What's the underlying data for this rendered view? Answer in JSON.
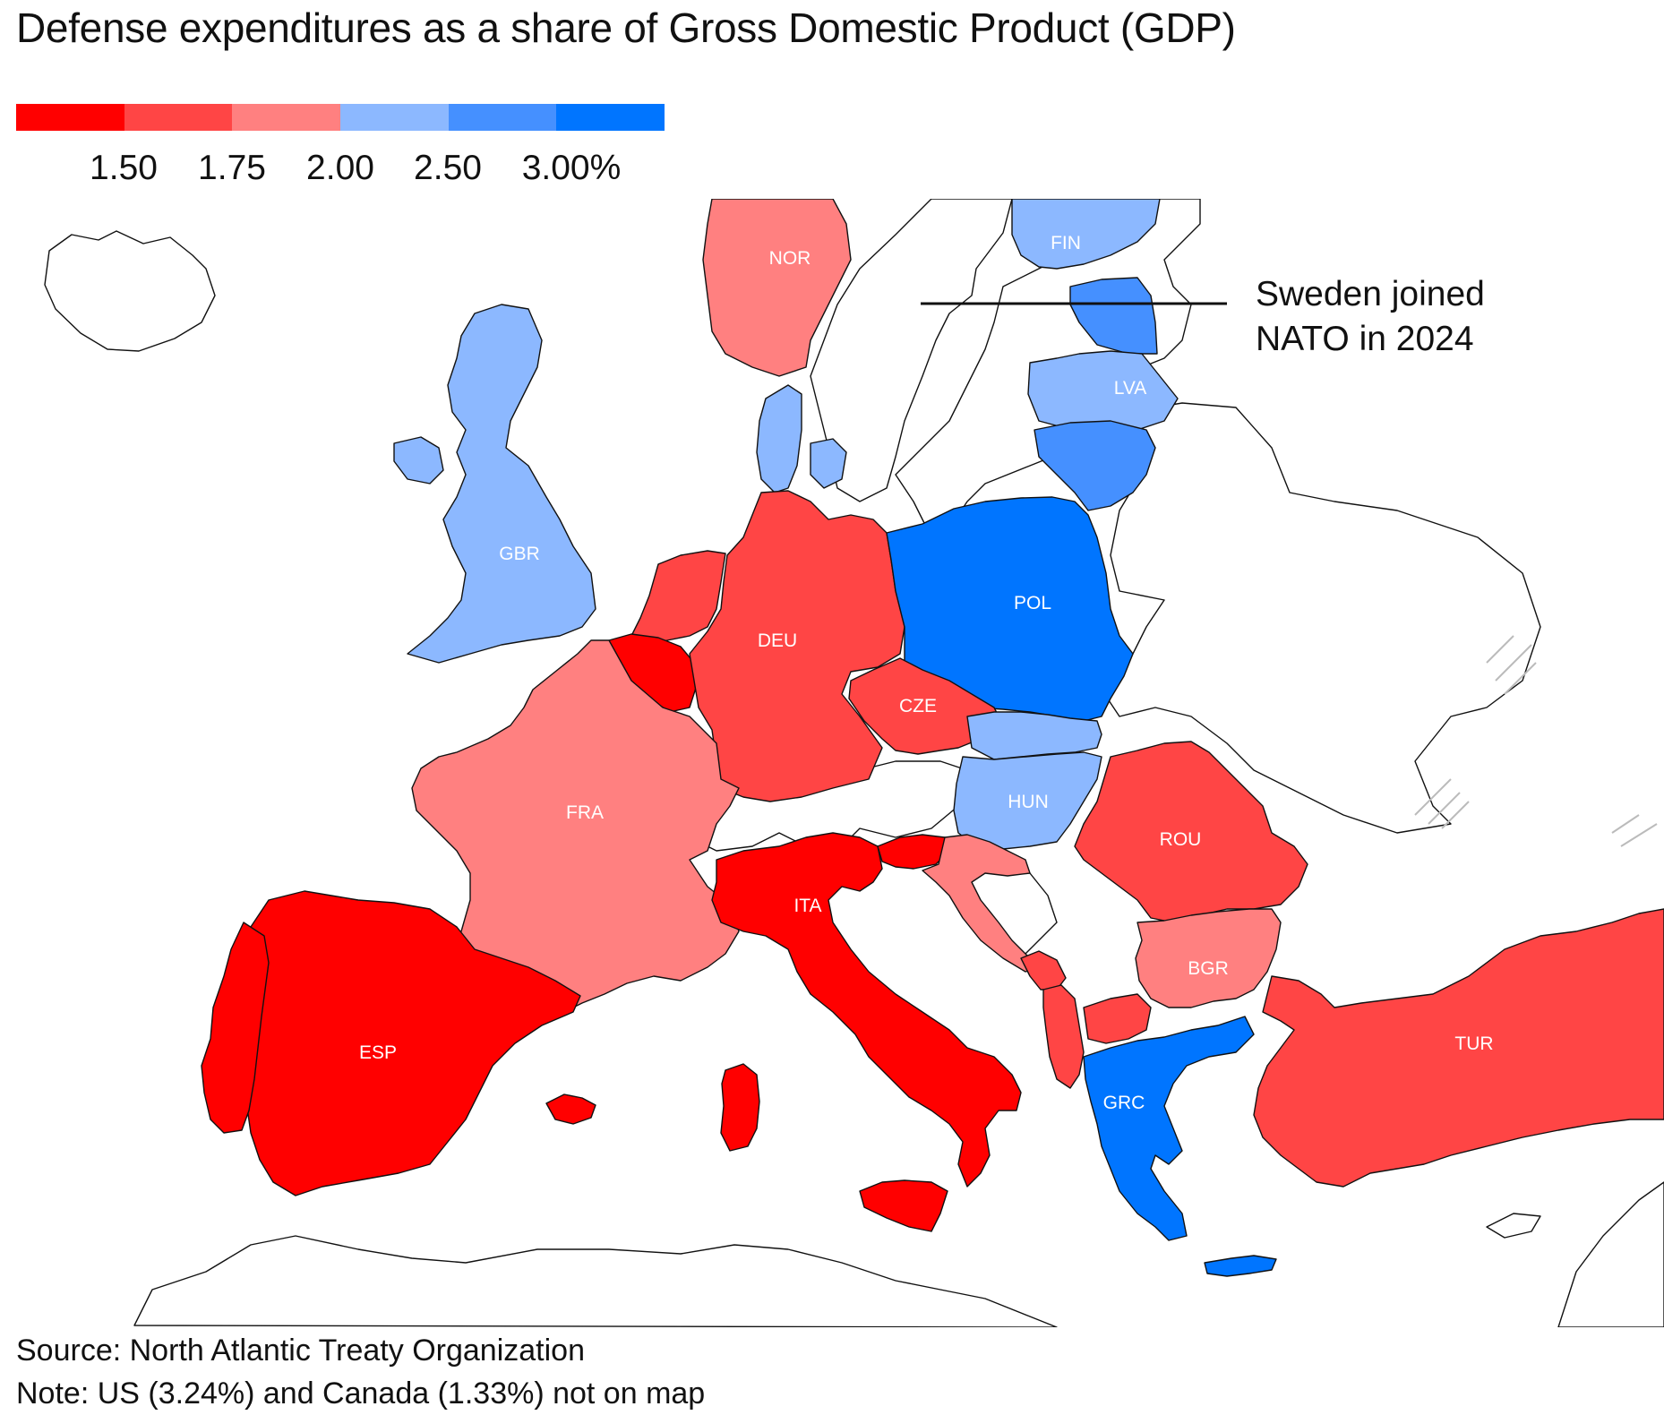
{
  "title": "Defense expenditures as a share of Gross Domestic Product (GDP)",
  "legend": {
    "colors": [
      "#ff0000",
      "#ff4545",
      "#ff8080",
      "#8cb8ff",
      "#4590ff",
      "#0075ff"
    ],
    "ticks": [
      "1.50",
      "1.75",
      "2.00",
      "2.50",
      "3.00%"
    ]
  },
  "map": {
    "countries": [
      {
        "code": "NOR",
        "label": "NOR",
        "bin": 2
      },
      {
        "code": "FIN",
        "label": "FIN",
        "bin": 3
      },
      {
        "code": "EST",
        "label": "",
        "bin": 4
      },
      {
        "code": "LVA",
        "label": "LVA",
        "bin": 3
      },
      {
        "code": "LTU",
        "label": "",
        "bin": 4
      },
      {
        "code": "GBR",
        "label": "GBR",
        "bin": 3
      },
      {
        "code": "DNK",
        "label": "",
        "bin": 3
      },
      {
        "code": "NLD",
        "label": "",
        "bin": 1
      },
      {
        "code": "BEL",
        "label": "",
        "bin": 0
      },
      {
        "code": "DEU",
        "label": "DEU",
        "bin": 1
      },
      {
        "code": "POL",
        "label": "POL",
        "bin": 5
      },
      {
        "code": "CZE",
        "label": "CZE",
        "bin": 1
      },
      {
        "code": "SVK",
        "label": "",
        "bin": 3
      },
      {
        "code": "HUN",
        "label": "HUN",
        "bin": 3
      },
      {
        "code": "FRA",
        "label": "FRA",
        "bin": 2
      },
      {
        "code": "ROU",
        "label": "ROU",
        "bin": 1
      },
      {
        "code": "ITA",
        "label": "ITA",
        "bin": 0
      },
      {
        "code": "SVN",
        "label": "",
        "bin": 0
      },
      {
        "code": "HRV",
        "label": "",
        "bin": 2
      },
      {
        "code": "BGR",
        "label": "BGR",
        "bin": 2
      },
      {
        "code": "ESP",
        "label": "ESP",
        "bin": 0
      },
      {
        "code": "PRT",
        "label": "",
        "bin": 0
      },
      {
        "code": "MNE",
        "label": "",
        "bin": 1
      },
      {
        "code": "ALB",
        "label": "",
        "bin": 1
      },
      {
        "code": "MKD",
        "label": "",
        "bin": 1
      },
      {
        "code": "GRC",
        "label": "GRC",
        "bin": 5
      },
      {
        "code": "TUR",
        "label": "TUR",
        "bin": 1
      }
    ]
  },
  "annotation": {
    "line1": "Sweden joined",
    "line2": "NATO in 2024"
  },
  "footer": {
    "source": "Source: North Atlantic Treaty Organization",
    "note": "Note: US (3.24%) and Canada (1.33%) not on map"
  }
}
